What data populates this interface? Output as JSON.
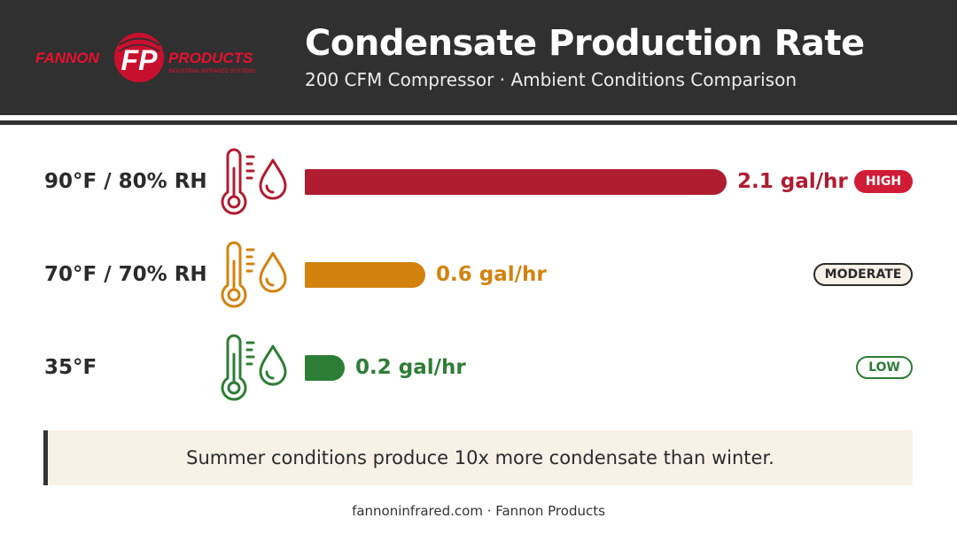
{
  "brand": {
    "name_left": "FANNON",
    "name_right": "PRODUCTS",
    "monogram": "FP",
    "tagline": "INDUSTRIAL INFRARED SYSTEMS"
  },
  "header": {
    "title": "Condensate Production Rate",
    "subtitle": "200 CFM Compressor · Ambient Conditions Comparison"
  },
  "chart_data": {
    "type": "bar",
    "orientation": "horizontal",
    "categories": [
      "90°F / 80% RH",
      "70°F / 70% RH",
      "35°F"
    ],
    "values": [
      2.1,
      0.6,
      0.2
    ],
    "unit": "gal/hr",
    "value_labels": [
      "2.1 gal/hr",
      "0.6 gal/hr",
      "0.2 gal/hr"
    ],
    "badges": [
      "HIGH",
      "MODERATE",
      "LOW"
    ],
    "colors": [
      "#b01c30",
      "#d4820e",
      "#2e7d36"
    ],
    "xlim": [
      0,
      2.1
    ],
    "grid": false
  },
  "callout": {
    "text": "Summer conditions produce 10x more condensate than winter."
  },
  "footer": {
    "text": "fannoninfrared.com · Fannon Products"
  }
}
